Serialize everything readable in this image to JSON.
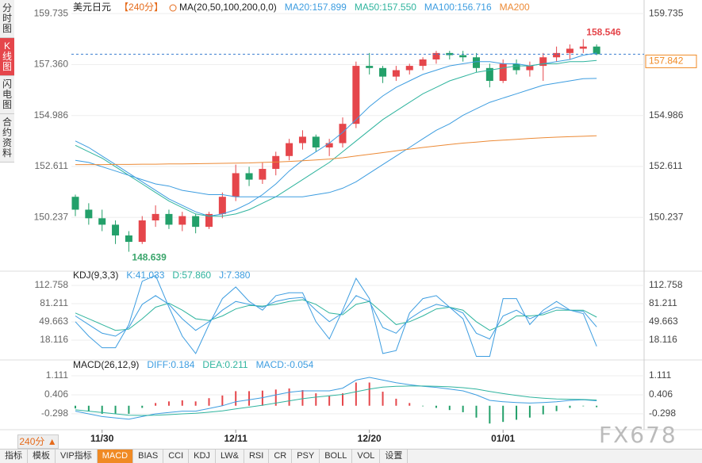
{
  "sidebar": [
    "分时图",
    "K线图",
    "闪电图",
    "合约资料"
  ],
  "sidebar_active": 1,
  "chart_data": [
    {
      "type": "candlestick",
      "title": "美元日元",
      "period": "【240分】",
      "indicator": "MA(20,50,100,200,0,0)",
      "categories": [
        null,
        null,
        "11/30",
        null,
        null,
        null,
        null,
        null,
        null,
        null,
        null,
        null,
        "12/11",
        null,
        null,
        null,
        null,
        null,
        null,
        null,
        null,
        null,
        "12/20",
        null,
        null,
        null,
        null,
        null,
        null,
        null,
        null,
        null,
        "01/01",
        null,
        null,
        null,
        null,
        null,
        null,
        null
      ],
      "candles": [
        [
          151.2,
          151.3,
          150.3,
          150.6
        ],
        [
          150.6,
          150.9,
          149.9,
          150.2
        ],
        [
          150.2,
          150.6,
          149.6,
          149.9
        ],
        [
          149.9,
          150.1,
          149.0,
          149.4
        ],
        [
          149.4,
          149.6,
          148.639,
          149.1
        ],
        [
          149.1,
          150.3,
          149.0,
          150.1
        ],
        [
          150.1,
          150.8,
          149.8,
          150.4
        ],
        [
          150.4,
          150.6,
          149.7,
          149.9
        ],
        [
          149.9,
          150.5,
          149.6,
          150.3
        ],
        [
          150.3,
          150.4,
          149.5,
          149.8
        ],
        [
          149.8,
          150.5,
          149.7,
          150.4
        ],
        [
          150.4,
          151.4,
          150.2,
          151.2
        ],
        [
          151.2,
          152.7,
          151.0,
          152.3
        ],
        [
          152.3,
          152.6,
          151.7,
          152.0
        ],
        [
          152.0,
          152.8,
          151.8,
          152.5
        ],
        [
          152.5,
          153.3,
          152.2,
          153.1
        ],
        [
          153.1,
          153.9,
          152.9,
          153.7
        ],
        [
          153.7,
          154.3,
          153.4,
          154.0
        ],
        [
          154.0,
          154.1,
          153.3,
          153.5
        ],
        [
          153.5,
          153.9,
          153.1,
          153.7
        ],
        [
          153.7,
          154.9,
          153.5,
          154.6
        ],
        [
          154.6,
          157.5,
          154.4,
          157.3
        ],
        [
          157.3,
          157.9,
          156.9,
          157.2
        ],
        [
          157.2,
          157.3,
          156.5,
          156.8
        ],
        [
          156.8,
          157.3,
          156.6,
          157.1
        ],
        [
          157.1,
          157.4,
          156.9,
          157.3
        ],
        [
          157.3,
          157.7,
          157.1,
          157.6
        ],
        [
          157.6,
          158.0,
          157.4,
          157.9
        ],
        [
          157.9,
          158.0,
          157.6,
          157.8
        ],
        [
          157.8,
          158.0,
          157.5,
          157.7
        ],
        [
          157.7,
          157.9,
          157.0,
          157.2
        ],
        [
          157.2,
          157.4,
          156.3,
          156.6
        ],
        [
          156.6,
          157.6,
          156.5,
          157.4
        ],
        [
          157.4,
          157.6,
          156.9,
          157.1
        ],
        [
          157.1,
          157.5,
          156.8,
          157.3
        ],
        [
          157.3,
          157.9,
          156.6,
          157.7
        ],
        [
          157.7,
          158.2,
          157.5,
          157.9
        ],
        [
          157.9,
          158.3,
          157.6,
          158.1
        ],
        [
          158.1,
          158.546,
          157.9,
          158.2
        ],
        [
          158.2,
          158.3,
          157.8,
          157.842
        ]
      ],
      "up_color": "#e5464b",
      "down_color": "#23a06a",
      "high_index": 38,
      "low_index": 4,
      "high_color": "#e5464b",
      "low_color": "#3aa56b",
      "series": [
        {
          "name": "MA20",
          "color": "#3d9de0",
          "values": [
            153.8,
            153.5,
            153.1,
            152.7,
            152.3,
            151.9,
            151.5,
            151.1,
            150.8,
            150.5,
            150.3,
            150.4,
            150.6,
            150.9,
            151.3,
            151.8,
            152.4,
            152.9,
            153.3,
            153.7,
            154.2,
            154.8,
            155.4,
            155.9,
            156.3,
            156.6,
            156.9,
            157.1,
            157.3,
            157.4,
            157.5,
            157.5,
            157.4,
            157.4,
            157.3,
            157.4,
            157.5,
            157.6,
            157.8,
            157.899
          ]
        },
        {
          "name": "MA50",
          "color": "#2fb49e",
          "values": [
            153.6,
            153.3,
            153.0,
            152.6,
            152.2,
            151.8,
            151.4,
            151.0,
            150.7,
            150.4,
            150.3,
            150.3,
            150.4,
            150.6,
            150.9,
            151.2,
            151.6,
            152.0,
            152.4,
            152.8,
            153.3,
            153.8,
            154.3,
            154.8,
            155.2,
            155.6,
            156.0,
            156.3,
            156.6,
            156.8,
            157.0,
            157.1,
            157.2,
            157.3,
            157.3,
            157.4,
            157.4,
            157.5,
            157.5,
            157.55
          ]
        },
        {
          "name": "MA100",
          "color": "#3d9de0",
          "values": [
            152.9,
            152.8,
            152.6,
            152.4,
            152.2,
            152.0,
            151.8,
            151.7,
            151.5,
            151.4,
            151.3,
            151.3,
            151.2,
            151.2,
            151.2,
            151.2,
            151.2,
            151.2,
            151.3,
            151.4,
            151.6,
            151.9,
            152.3,
            152.7,
            153.1,
            153.5,
            153.9,
            154.3,
            154.6,
            155.0,
            155.3,
            155.6,
            155.8,
            156.0,
            156.2,
            156.4,
            156.5,
            156.6,
            156.7,
            156.716
          ]
        },
        {
          "name": "MA200",
          "color": "#ec8a36",
          "values": [
            152.7,
            152.7,
            152.7,
            152.71,
            152.71,
            152.72,
            152.72,
            152.73,
            152.73,
            152.74,
            152.75,
            152.76,
            152.77,
            152.78,
            152.8,
            152.82,
            152.85,
            152.88,
            152.92,
            152.96,
            153.02,
            153.1,
            153.18,
            153.26,
            153.34,
            153.42,
            153.5,
            153.57,
            153.64,
            153.7,
            153.75,
            153.8,
            153.84,
            153.88,
            153.92,
            153.95,
            153.98,
            154.0,
            154.02,
            154.04
          ]
        }
      ],
      "legend": [
        "MA20:157.899",
        "MA50:157.550",
        "MA100:156.716",
        "MA200"
      ],
      "last_price": 157.842,
      "ylim": [
        147.81,
        160.0
      ],
      "yticks": [
        150.237,
        152.611,
        154.986,
        {
          "value": 157.36,
          "label": "157.360"
        },
        159.735
      ]
    },
    {
      "type": "line",
      "title": "KDJ(9,3,3)",
      "legend": [
        "K:41.033",
        "D:57.860",
        "J:7.380"
      ],
      "series": [
        {
          "name": "K",
          "color": "#3d9de0",
          "values": [
            60,
            45,
            30,
            25,
            40,
            80,
            95,
            80,
            55,
            35,
            50,
            70,
            85,
            80,
            75,
            85,
            90,
            92,
            70,
            50,
            65,
            95,
            85,
            40,
            30,
            55,
            70,
            80,
            75,
            65,
            30,
            20,
            60,
            70,
            55,
            65,
            75,
            70,
            68,
            41.033
          ]
        },
        {
          "name": "D",
          "color": "#2fb49e",
          "values": [
            65,
            55,
            45,
            35,
            37,
            55,
            75,
            82,
            70,
            55,
            52,
            60,
            72,
            78,
            77,
            80,
            85,
            88,
            80,
            65,
            62,
            80,
            85,
            65,
            45,
            50,
            60,
            72,
            75,
            70,
            50,
            35,
            45,
            60,
            60,
            62,
            70,
            70,
            70,
            57.86
          ]
        },
        {
          "name": "J",
          "color": "#3d9de0",
          "values": [
            50,
            25,
            5,
            5,
            45,
            120,
            130,
            75,
            25,
            -5,
            45,
            90,
            110,
            85,
            70,
            95,
            100,
            100,
            50,
            20,
            70,
            125,
            90,
            -5,
            0,
            65,
            90,
            95,
            75,
            55,
            -10,
            -10,
            90,
            90,
            45,
            70,
            85,
            70,
            64,
            7.38
          ]
        }
      ],
      "ylim": [
        -13.4,
        133.3
      ],
      "yticks": [
        18.116,
        49.663,
        81.211,
        112.758
      ]
    },
    {
      "type": "macd",
      "title": "MACD(26,12,9)",
      "legend": [
        "DIFF:0.184",
        "DEA:0.211",
        "MACD:-0.054"
      ],
      "series": [
        {
          "name": "DIFF",
          "color": "#3d9de0",
          "values": [
            -0.2,
            -0.3,
            -0.4,
            -0.45,
            -0.5,
            -0.4,
            -0.3,
            -0.25,
            -0.2,
            -0.2,
            -0.1,
            0.0,
            0.15,
            0.22,
            0.3,
            0.4,
            0.5,
            0.55,
            0.55,
            0.55,
            0.65,
            0.95,
            1.05,
            0.95,
            0.85,
            0.78,
            0.72,
            0.68,
            0.62,
            0.55,
            0.4,
            0.2,
            0.15,
            0.12,
            0.1,
            0.12,
            0.15,
            0.2,
            0.22,
            0.184
          ]
        },
        {
          "name": "DEA",
          "color": "#2fb49e",
          "values": [
            -0.15,
            -0.2,
            -0.25,
            -0.3,
            -0.35,
            -0.36,
            -0.35,
            -0.33,
            -0.3,
            -0.28,
            -0.24,
            -0.19,
            -0.12,
            -0.05,
            0.02,
            0.1,
            0.18,
            0.26,
            0.32,
            0.37,
            0.42,
            0.52,
            0.62,
            0.69,
            0.72,
            0.73,
            0.73,
            0.72,
            0.7,
            0.67,
            0.62,
            0.53,
            0.45,
            0.38,
            0.32,
            0.28,
            0.25,
            0.24,
            0.23,
            0.211
          ]
        }
      ],
      "histogram": {
        "name": "MACD",
        "up_color": "#e5464b",
        "down_color": "#23a06a",
        "values": [
          -0.1,
          -0.2,
          -0.3,
          -0.3,
          -0.3,
          -0.08,
          0.1,
          0.16,
          0.2,
          0.16,
          0.28,
          0.38,
          0.54,
          0.54,
          0.56,
          0.6,
          0.64,
          0.58,
          0.46,
          0.36,
          0.46,
          0.86,
          0.86,
          0.52,
          0.26,
          0.1,
          -0.02,
          -0.08,
          -0.16,
          -0.24,
          -0.44,
          -0.66,
          -0.6,
          -0.52,
          -0.44,
          -0.32,
          -0.2,
          -0.08,
          -0.02,
          -0.054
        ]
      },
      "ylim": [
        -0.83,
        1.58
      ],
      "yticks": [
        -0.298,
        0.406,
        1.111
      ]
    }
  ],
  "toolbar": {
    "period": "240分 ▲",
    "buttons": [
      "指标",
      "模板",
      "VIP指标",
      "MACD",
      "BIAS",
      "CCI",
      "KDJ",
      "LW&",
      "RSI",
      "CR",
      "PSY",
      "BOLL",
      "VOL",
      "设置"
    ],
    "active": 3
  },
  "watermark": "FX678"
}
